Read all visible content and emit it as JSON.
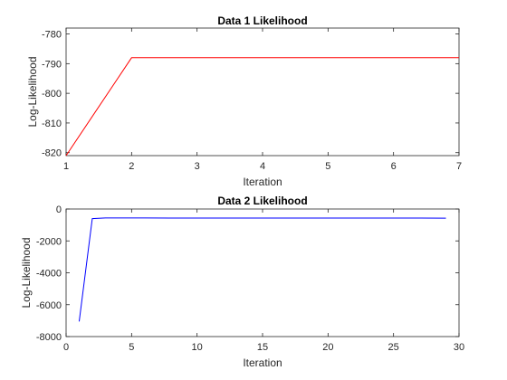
{
  "chart_data": [
    {
      "type": "line",
      "title": "Data 1 Likelihood",
      "xlabel": "Iteration",
      "ylabel": "Log-Likelihood",
      "xlim": [
        1,
        7
      ],
      "ylim": [
        -821,
        -778
      ],
      "xticks": [
        1,
        2,
        3,
        4,
        5,
        6,
        7
      ],
      "yticks": [
        -820,
        -810,
        -800,
        -790,
        -780
      ],
      "grid": false,
      "color": "#ff0000",
      "series": [
        {
          "x": [
            1,
            2,
            3,
            4,
            5,
            6,
            7
          ],
          "y": [
            -821,
            -788,
            -788,
            -788,
            -788,
            -788,
            -788
          ]
        }
      ]
    },
    {
      "type": "line",
      "title": "Data 2 Likelihood",
      "xlabel": "Iteration",
      "ylabel": "Log-Likelihood",
      "xlim": [
        0,
        30
      ],
      "ylim": [
        -8000,
        0
      ],
      "xticks": [
        0,
        5,
        10,
        15,
        20,
        25,
        30
      ],
      "yticks": [
        -8000,
        -6000,
        -4000,
        -2000,
        0
      ],
      "grid": false,
      "color": "#0000ff",
      "series": [
        {
          "x": [
            1,
            2,
            3,
            4,
            5,
            6,
            8,
            10,
            12,
            15,
            18,
            20,
            22,
            25,
            27,
            29
          ],
          "y": [
            -7050,
            -600,
            -560,
            -560,
            -560,
            -560,
            -565,
            -565,
            -570,
            -570,
            -570,
            -570,
            -570,
            -570,
            -570,
            -575
          ]
        }
      ]
    }
  ]
}
